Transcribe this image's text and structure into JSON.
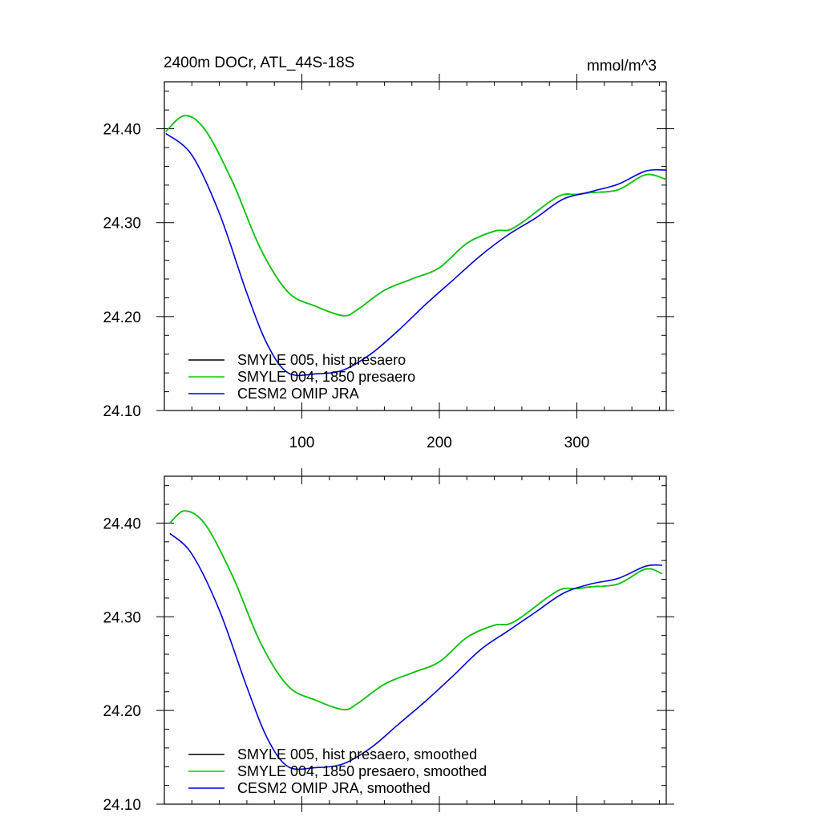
{
  "title": "2400m DOCr, ATL_44S-18S",
  "units": "mmol/m^3",
  "colors": {
    "hist": "#000000",
    "presaero1850": "#00d000",
    "omip": "#0000d8"
  },
  "chart_data": [
    {
      "type": "line",
      "title": "2400m DOCr, ATL_44S-18S",
      "units": "mmol/m^3",
      "xlim": [
        0,
        365
      ],
      "ylim": [
        24.1,
        24.45
      ],
      "xticks": [
        100,
        200,
        300
      ],
      "xtick_labels": [
        "100",
        "200",
        "300"
      ],
      "yticks": [
        24.1,
        24.2,
        24.3,
        24.4
      ],
      "ytick_labels": [
        "24.10",
        "24.20",
        "24.30",
        "24.40"
      ],
      "grid": false,
      "legend_position": "bottom-left",
      "series": [
        {
          "name": "SMYLE 005, hist presaero",
          "color": "#000000",
          "x": [
            1,
            15,
            30,
            50,
            70,
            90,
            110,
            130,
            140,
            160,
            180,
            200,
            220,
            240,
            250,
            260,
            280,
            290,
            300,
            310,
            330,
            350,
            365
          ],
          "y": [
            24.397,
            24.414,
            24.398,
            24.342,
            24.272,
            24.226,
            24.211,
            24.201,
            24.207,
            24.228,
            24.24,
            24.252,
            24.278,
            24.291,
            24.292,
            24.3,
            24.322,
            24.33,
            24.33,
            24.332,
            24.335,
            24.351,
            24.346
          ]
        },
        {
          "name": "SMYLE 004, 1850 presaero",
          "color": "#00d000",
          "x": [
            1,
            15,
            30,
            50,
            70,
            90,
            110,
            130,
            140,
            160,
            180,
            200,
            220,
            240,
            250,
            260,
            280,
            290,
            300,
            310,
            330,
            350,
            365
          ],
          "y": [
            24.397,
            24.414,
            24.398,
            24.342,
            24.272,
            24.226,
            24.211,
            24.201,
            24.207,
            24.228,
            24.24,
            24.252,
            24.278,
            24.291,
            24.292,
            24.3,
            24.322,
            24.33,
            24.33,
            24.332,
            24.335,
            24.351,
            24.346
          ]
        },
        {
          "name": "CESM2 OMIP JRA",
          "color": "#0000d8",
          "x": [
            1,
            20,
            40,
            60,
            75,
            90,
            110,
            130,
            150,
            170,
            190,
            210,
            230,
            250,
            270,
            290,
            310,
            330,
            350,
            365
          ],
          "y": [
            24.395,
            24.372,
            24.31,
            24.225,
            24.17,
            24.14,
            24.139,
            24.143,
            24.16,
            24.185,
            24.213,
            24.239,
            24.265,
            24.287,
            24.305,
            24.325,
            24.333,
            24.341,
            24.355,
            24.356
          ]
        }
      ]
    },
    {
      "type": "line",
      "xlim": [
        0,
        365
      ],
      "ylim": [
        24.1,
        24.45
      ],
      "xticks": [
        100,
        200,
        300
      ],
      "xtick_labels": [],
      "yticks": [
        24.1,
        24.2,
        24.3,
        24.4
      ],
      "ytick_labels": [
        "24.10",
        "24.20",
        "24.30",
        "24.40"
      ],
      "grid": false,
      "legend_position": "bottom-left",
      "series": [
        {
          "name": "SMYLE 005, hist presaero, smoothed",
          "color": "#000000",
          "x": [
            4,
            15,
            30,
            50,
            70,
            90,
            110,
            130,
            140,
            160,
            180,
            200,
            220,
            240,
            250,
            260,
            280,
            290,
            300,
            310,
            330,
            350,
            362
          ],
          "y": [
            24.4,
            24.413,
            24.398,
            24.342,
            24.272,
            24.226,
            24.211,
            24.201,
            24.207,
            24.228,
            24.24,
            24.252,
            24.278,
            24.291,
            24.292,
            24.3,
            24.322,
            24.33,
            24.33,
            24.332,
            24.335,
            24.351,
            24.346
          ]
        },
        {
          "name": "SMYLE 004, 1850 presaero, smoothed",
          "color": "#00d000",
          "x": [
            4,
            15,
            30,
            50,
            70,
            90,
            110,
            130,
            140,
            160,
            180,
            200,
            220,
            240,
            250,
            260,
            280,
            290,
            300,
            310,
            330,
            350,
            362
          ],
          "y": [
            24.4,
            24.413,
            24.398,
            24.342,
            24.272,
            24.226,
            24.211,
            24.201,
            24.207,
            24.228,
            24.24,
            24.252,
            24.278,
            24.291,
            24.292,
            24.3,
            24.322,
            24.33,
            24.33,
            24.332,
            24.335,
            24.351,
            24.346
          ]
        },
        {
          "name": "CESM2 OMIP JRA, smoothed",
          "color": "#0000d8",
          "x": [
            4,
            20,
            40,
            60,
            75,
            90,
            110,
            130,
            150,
            170,
            190,
            210,
            230,
            250,
            270,
            290,
            310,
            330,
            350,
            362
          ],
          "y": [
            24.389,
            24.367,
            24.307,
            24.225,
            24.17,
            24.14,
            24.139,
            24.143,
            24.16,
            24.185,
            24.21,
            24.237,
            24.265,
            24.285,
            24.305,
            24.325,
            24.335,
            24.341,
            24.354,
            24.355
          ]
        }
      ]
    }
  ]
}
